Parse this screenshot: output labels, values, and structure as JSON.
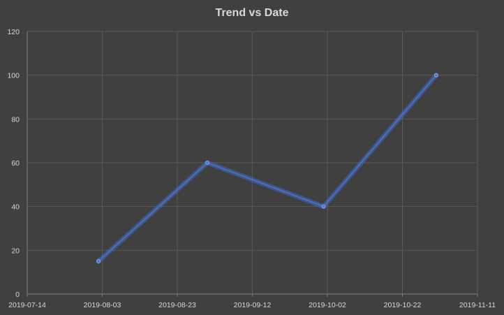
{
  "chart_data": {
    "type": "line",
    "title": "Trend vs Date",
    "xlabel": "",
    "ylabel": "",
    "x_axis_type": "date",
    "xlim": [
      "2019-07-14",
      "2019-11-11"
    ],
    "ylim": [
      0,
      120
    ],
    "x_ticks": [
      "2019-07-14",
      "2019-08-03",
      "2019-08-23",
      "2019-09-12",
      "2019-10-02",
      "2019-10-22",
      "2019-11-11"
    ],
    "y_ticks": [
      0,
      20,
      40,
      60,
      80,
      100,
      120
    ],
    "series": [
      {
        "x": [
          "2019-08-02",
          "2019-08-31",
          "2019-10-01",
          "2019-10-31"
        ],
        "values": [
          15,
          60,
          40,
          100
        ]
      }
    ],
    "grid": true,
    "legend": "none",
    "colors": {
      "background": "#404040",
      "series": "#4472c4",
      "glow": "#4a78ff",
      "grid": "#5a5a5a",
      "text": "#d9d9d9"
    }
  }
}
